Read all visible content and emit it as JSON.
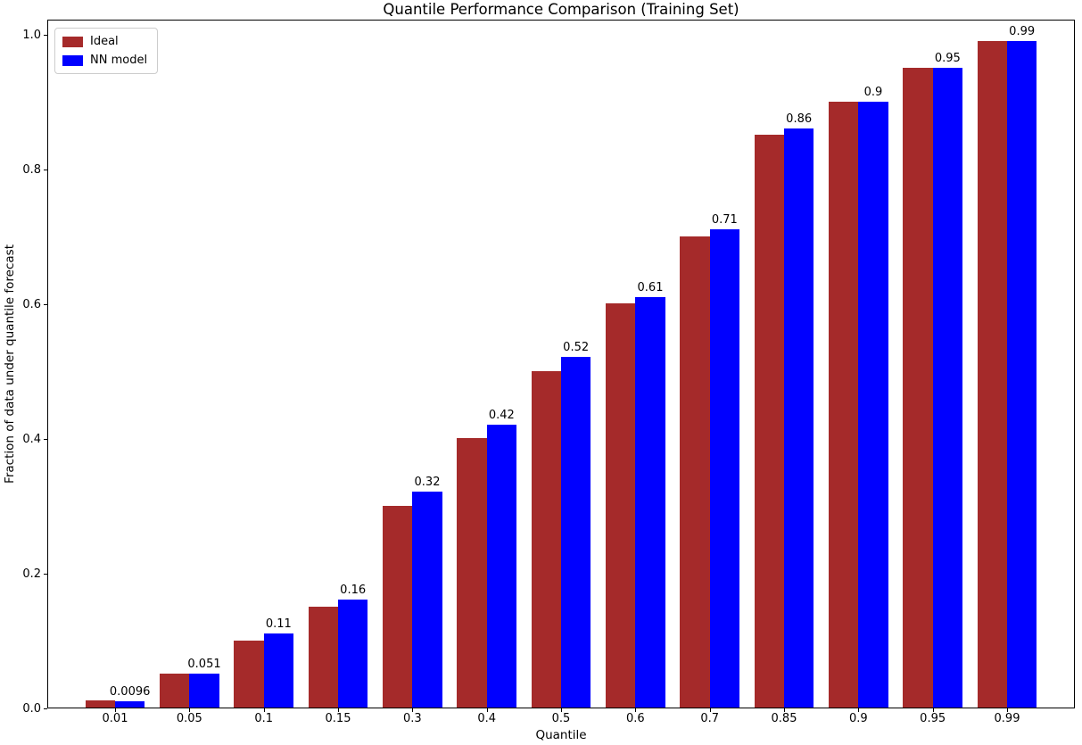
{
  "figure": {
    "background": "#ffffff"
  },
  "chart_data": {
    "type": "bar",
    "title": "Quantile Performance Comparison (Training Set)",
    "xlabel": "Quantile",
    "ylabel": "Fraction of data under quantile forecast",
    "categories": [
      "0.01",
      "0.05",
      "0.1",
      "0.15",
      "0.3",
      "0.4",
      "0.5",
      "0.6",
      "0.7",
      "0.85",
      "0.9",
      "0.95",
      "0.99"
    ],
    "series": [
      {
        "name": "Ideal",
        "color": "#A52A2A",
        "values": [
          0.01,
          0.05,
          0.1,
          0.15,
          0.3,
          0.4,
          0.5,
          0.6,
          0.7,
          0.85,
          0.9,
          0.95,
          0.99
        ]
      },
      {
        "name": "NN model",
        "color": "#0000FF",
        "values": [
          0.0096,
          0.051,
          0.11,
          0.16,
          0.32,
          0.42,
          0.52,
          0.61,
          0.71,
          0.86,
          0.9,
          0.95,
          0.99
        ],
        "bar_labels": [
          "0.0096",
          "0.051",
          "0.11",
          "0.16",
          "0.32",
          "0.42",
          "0.52",
          "0.61",
          "0.71",
          "0.86",
          "0.9",
          "0.95",
          "0.99"
        ]
      }
    ],
    "yticks": [
      "0.0",
      "0.2",
      "0.4",
      "0.6",
      "0.8",
      "1.0"
    ],
    "ylim": [
      0,
      1.02
    ],
    "legend_position": "upper left",
    "grid": false,
    "axis_color": "#000000"
  }
}
